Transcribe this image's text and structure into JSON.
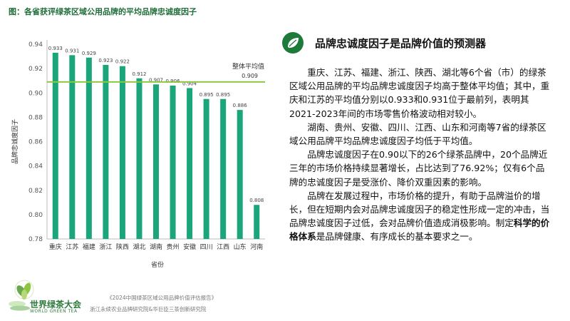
{
  "figure_title": "图：各省获评绿茶区域公用品牌的平均品牌忠诚度因子",
  "chart_data": {
    "type": "bar",
    "categories": [
      "重庆",
      "江苏",
      "福建",
      "浙江",
      "陕西",
      "湖北",
      "湖南",
      "贵州",
      "安徽",
      "四川",
      "江西",
      "山东",
      "河南"
    ],
    "values": [
      0.933,
      0.931,
      0.929,
      0.923,
      0.922,
      0.912,
      0.907,
      0.906,
      0.904,
      0.895,
      0.895,
      0.886,
      0.808
    ],
    "value_labels": [
      "0.933",
      "0.931",
      "0.929",
      "0.923",
      "0.922",
      "0.912",
      "0.907",
      "0.906",
      "0.904",
      "0.895",
      "0.895",
      "0.886",
      "0.808"
    ],
    "xlabel": "省份",
    "ylabel": "品牌忠诚度因子",
    "ylim": [
      0.78,
      0.94
    ],
    "yticks": [
      "0.78",
      "0.80",
      "0.82",
      "0.84",
      "0.86",
      "0.88",
      "0.90",
      "0.92",
      "0.94"
    ],
    "bar_color": "#1aa57a",
    "reference_line": {
      "value": 0.909,
      "label": "整体平均值",
      "value_label": "0.909",
      "color": "#8dc63f"
    },
    "grid": false
  },
  "section": {
    "heading": "品牌忠诚度因子是品牌价值的预测器",
    "icon": "leaf-icon",
    "accent_color": "#1d7a3b"
  },
  "paragraphs": {
    "p1": "重庆、江苏、福建、浙江、陕西、湖北等6个省（市）的绿茶区域公用品牌的平均品牌忠诚度因子均高于整体平均值；其中，重庆和江苏的平均值分别以0.933和0.931位于最前列，表明其2021-2023年间的市场零售价格波动相对较小。",
    "p2": "湖南、贵州、安徽、四川、江西、山东和河南等7省的绿茶区域公用品牌平均品牌忠诚度因子均低于平均值。",
    "p3": "品牌忠诚度因子在0.90以下的26个绿茶品牌中，20个品牌近三年的市场价格持续显著增长，占比达到了76.92%；仅有6个品牌的忠诚度因子是受涨价、降价双重因素的影响。",
    "p4_before": "品牌在发展过程中，市场价格的提升，有助于品牌溢价的增长，但在短期内会对品牌忠诚度因子的稳定性形成一定的冲击，当品牌忠诚度因子过低，会对品牌价值造成消极影响。制定",
    "p4_bold": "科学的价格体系",
    "p4_after": "是品牌健康、有序成长的基本要求之一。"
  },
  "logo": {
    "name": "世界绿茶大会",
    "english": "WORLD GREEN TEA"
  },
  "footer": {
    "report": "《2024中国绿茶区域公用品牌价值评估报告》",
    "institutes": "浙江永续农业品牌研究院&华巨臣三茶创新研究院"
  }
}
